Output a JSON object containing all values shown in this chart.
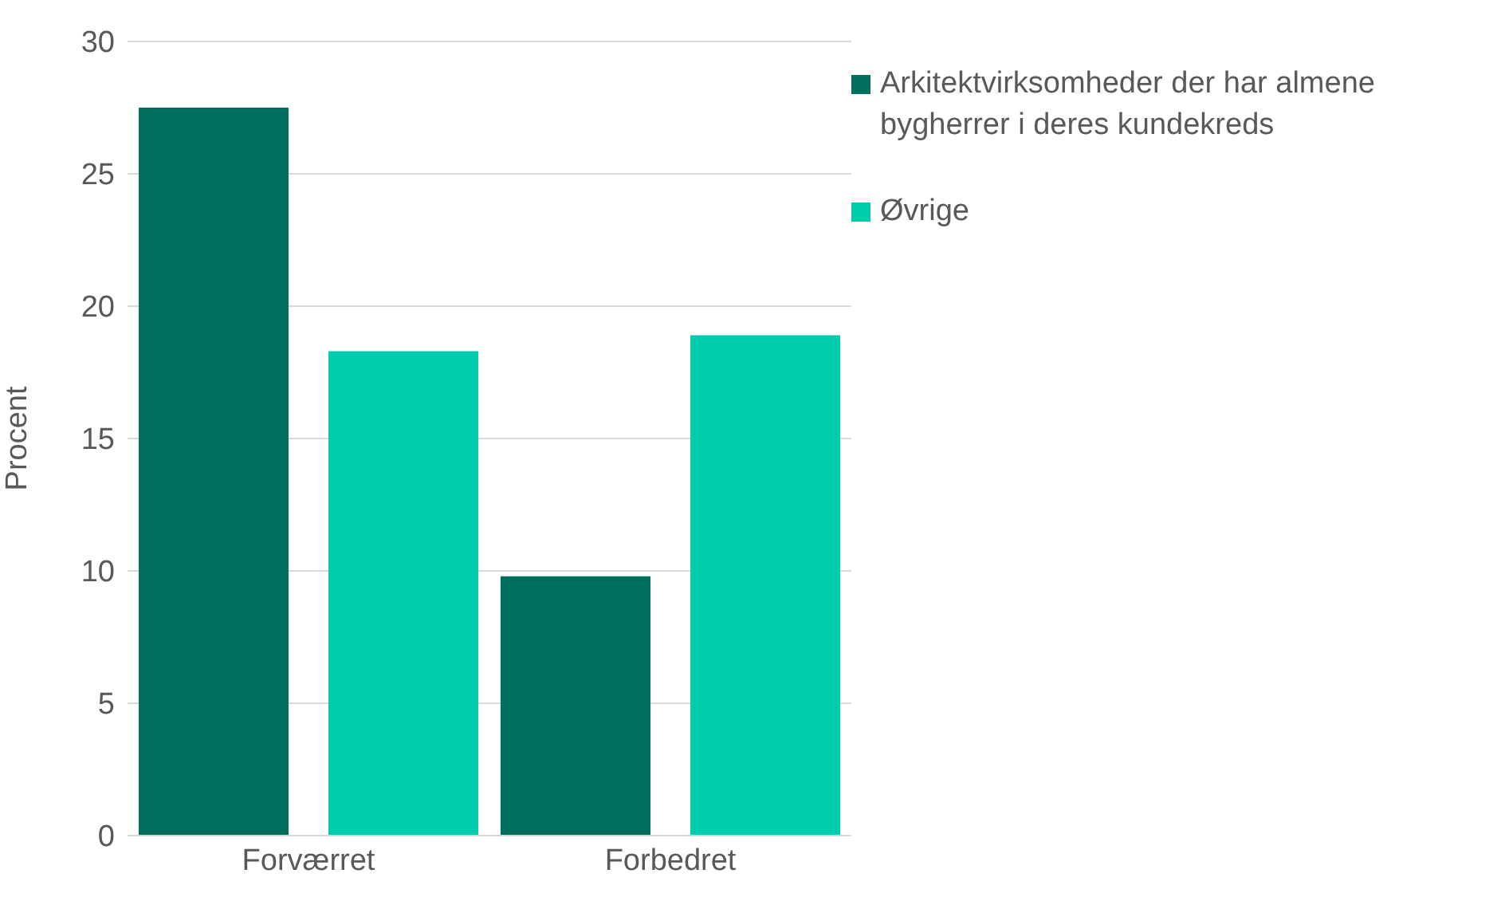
{
  "chart_data": {
    "type": "bar",
    "ylabel": "Procent",
    "categories": [
      "Forværret",
      "Forbedret"
    ],
    "series": [
      {
        "name": "Arkitektvirksomheder der har almene bygherrer i deres kundekreds",
        "color": "#00705e",
        "values": [
          27.5,
          9.8
        ]
      },
      {
        "name": "Øvrige",
        "color": "#00cbad",
        "values": [
          18.3,
          18.9
        ]
      }
    ],
    "ylim": [
      0,
      30
    ],
    "yticks": [
      0,
      5,
      10,
      15,
      20,
      25,
      30
    ],
    "grid": "y",
    "legend": "top right"
  }
}
